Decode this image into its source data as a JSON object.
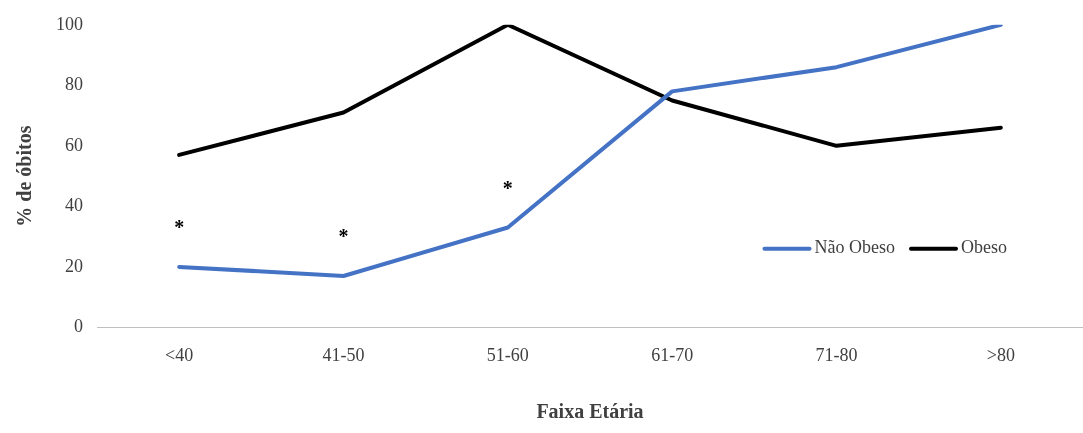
{
  "chart_data": {
    "type": "line",
    "xlabel": "Faixa Etária",
    "ylabel": "% de óbitos",
    "categories": [
      "<40",
      "41-50",
      "51-60",
      "61-70",
      "71-80",
      ">80"
    ],
    "series": [
      {
        "name": "Não Obeso",
        "color": "#4472c4",
        "values": [
          20,
          17,
          33,
          78,
          86,
          100
        ]
      },
      {
        "name": "Obeso",
        "color": "#000000",
        "values": [
          57,
          71,
          100,
          75,
          60,
          66
        ]
      }
    ],
    "ylim": [
      0,
      100
    ],
    "yticks": [
      0,
      20,
      40,
      60,
      80,
      100
    ],
    "grid": false,
    "legend": "right",
    "marker": "none",
    "line_style": "solid",
    "annotations": [
      "*",
      "*",
      "*"
    ]
  }
}
